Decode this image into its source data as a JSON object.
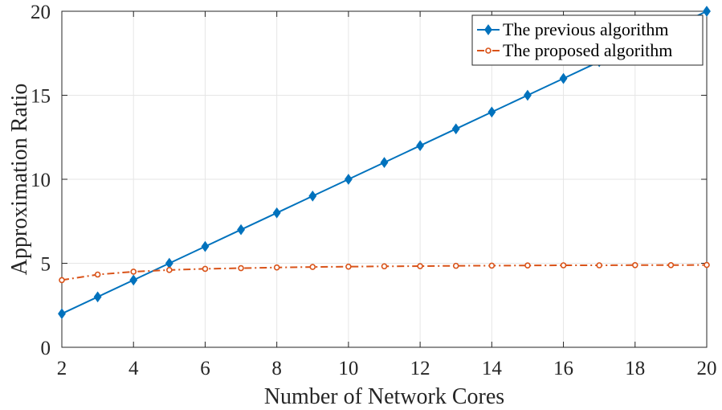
{
  "chart_data": {
    "type": "line",
    "title": "",
    "xlabel": "Number of Network Cores",
    "ylabel": "Approximation Ratio",
    "xlim": [
      2,
      20
    ],
    "ylim": [
      0,
      20
    ],
    "xticks": [
      2,
      4,
      6,
      8,
      10,
      12,
      14,
      16,
      18,
      20
    ],
    "yticks": [
      0,
      5,
      10,
      15,
      20
    ],
    "xtick_labels": [
      "2",
      "4",
      "6",
      "8",
      "10",
      "12",
      "14",
      "16",
      "18",
      "20"
    ],
    "ytick_labels": [
      "0",
      "5",
      "10",
      "15",
      "20"
    ],
    "grid": true,
    "legend_position": "top-right",
    "x": [
      2,
      3,
      4,
      5,
      6,
      7,
      8,
      9,
      10,
      11,
      12,
      13,
      14,
      15,
      16,
      17,
      18,
      19,
      20
    ],
    "series": [
      {
        "name": "The previous algorithm",
        "color": "#0072BD",
        "marker": "diamond",
        "line_style": "solid",
        "values": [
          2,
          3,
          4,
          5,
          6,
          7,
          8,
          9,
          10,
          11,
          12,
          13,
          14,
          15,
          16,
          17,
          18,
          19,
          20
        ]
      },
      {
        "name": "The proposed algorithm",
        "color": "#D95319",
        "marker": "circle",
        "line_style": "dash-dot",
        "values": [
          4.0,
          4.33,
          4.5,
          4.6,
          4.67,
          4.71,
          4.75,
          4.78,
          4.8,
          4.82,
          4.83,
          4.85,
          4.86,
          4.87,
          4.88,
          4.88,
          4.89,
          4.89,
          4.9
        ]
      }
    ]
  }
}
